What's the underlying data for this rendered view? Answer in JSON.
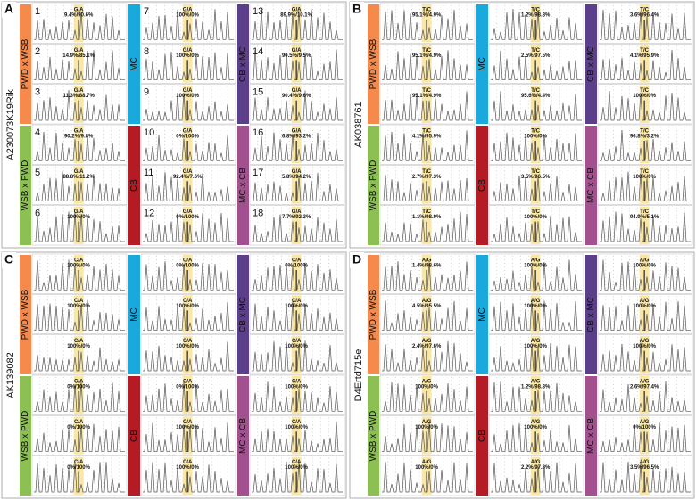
{
  "groups": [
    "PWD x WSB",
    "MC",
    "CB x MC",
    "WSB x PWD",
    "CB",
    "MC x CB"
  ],
  "panels": [
    {
      "letter": "A",
      "gene": "A230073K19Rik",
      "cells": [
        {
          "number": "1",
          "allele": "G/A",
          "ratio": "9.4%/90.6%"
        },
        {
          "number": "2",
          "allele": "G/A",
          "ratio": "14.9%/85.1%"
        },
        {
          "number": "3",
          "allele": "G/A",
          "ratio": "11.3%/88.7%"
        },
        {
          "number": "4",
          "allele": "G/A",
          "ratio": "90.2%/9.8%"
        },
        {
          "number": "5",
          "allele": "G/A",
          "ratio": "88.8%/11.2%"
        },
        {
          "number": "6",
          "allele": "G/A",
          "ratio": "100%/0%"
        },
        {
          "number": "7",
          "allele": "G/A",
          "ratio": "100%/0%"
        },
        {
          "number": "8",
          "allele": "G/A",
          "ratio": "100%/0%"
        },
        {
          "number": "9",
          "allele": "G/A",
          "ratio": "100%/0%"
        },
        {
          "number": "10",
          "allele": "G/A",
          "ratio": "0%/100%"
        },
        {
          "number": "11",
          "allele": "G/A",
          "ratio": "92.4%/7.6%"
        },
        {
          "number": "12",
          "allele": "G/A",
          "ratio": "0%/100%"
        },
        {
          "number": "13",
          "allele": "G/A",
          "ratio": "89.9%/10.1%"
        },
        {
          "number": "14",
          "allele": "G/A",
          "ratio": "90.5%/9.5%"
        },
        {
          "number": "15",
          "allele": "G/A",
          "ratio": "90.4%/9.6%"
        },
        {
          "number": "16",
          "allele": "G/A",
          "ratio": "6.8%/93.2%"
        },
        {
          "number": "17",
          "allele": "G/A",
          "ratio": "5.8%/94.2%"
        },
        {
          "number": "18",
          "allele": "G/A",
          "ratio": "7.7%/92.3%"
        }
      ]
    },
    {
      "letter": "B",
      "gene": "AK038761",
      "cells": [
        {
          "allele": "T/C",
          "ratio": "95.1%/4.9%"
        },
        {
          "allele": "T/C",
          "ratio": "95.1%/4.9%"
        },
        {
          "allele": "T/C",
          "ratio": "95.1%/4.9%"
        },
        {
          "allele": "T/C",
          "ratio": "4.1%/95.9%"
        },
        {
          "allele": "T/C",
          "ratio": "2.7%/97.3%"
        },
        {
          "allele": "T/C",
          "ratio": "1.1%/98.9%"
        },
        {
          "allele": "T/C",
          "ratio": "1.2%/98.8%"
        },
        {
          "allele": "T/C",
          "ratio": "2.5%/97.5%"
        },
        {
          "allele": "T/C",
          "ratio": "95.6%/4.4%"
        },
        {
          "allele": "T/C",
          "ratio": "100%/0%"
        },
        {
          "allele": "T/C",
          "ratio": "3.5%/96.5%"
        },
        {
          "allele": "T/C",
          "ratio": "100%/0%"
        },
        {
          "allele": "T/C",
          "ratio": "3.6%/96.4%"
        },
        {
          "allele": "T/C",
          "ratio": "4.1%/95.9%"
        },
        {
          "allele": "T/C",
          "ratio": "100%/0%"
        },
        {
          "allele": "T/C",
          "ratio": "96.8%/3.2%"
        },
        {
          "allele": "T/C",
          "ratio": "100%/0%"
        },
        {
          "allele": "T/C",
          "ratio": "94.9%/5.1%"
        }
      ]
    },
    {
      "letter": "C",
      "gene": "AK139082",
      "cells": [
        {
          "allele": "C/A",
          "ratio": "100%/0%"
        },
        {
          "allele": "C/A",
          "ratio": "100%/0%"
        },
        {
          "allele": "C/A",
          "ratio": "100%/0%"
        },
        {
          "allele": "C/A",
          "ratio": "0%/100%"
        },
        {
          "allele": "C/A",
          "ratio": "0%/100%"
        },
        {
          "allele": "C/A",
          "ratio": "0%/100%"
        },
        {
          "allele": "C/A",
          "ratio": "0%/100%"
        },
        {
          "allele": "C/A",
          "ratio": "100%/0%"
        },
        {
          "allele": "C/A",
          "ratio": "100%/0%"
        },
        {
          "allele": "C/A",
          "ratio": "0%/100%"
        },
        {
          "allele": "C/A",
          "ratio": "100%/0%"
        },
        {
          "allele": "C/A",
          "ratio": "100%/0%"
        },
        {
          "allele": "C/A",
          "ratio": "0%/100%"
        },
        {
          "allele": "C/A",
          "ratio": "100%/0%"
        },
        {
          "allele": "C/A",
          "ratio": "100%/0%"
        },
        {
          "allele": "C/A",
          "ratio": "100%/0%"
        },
        {
          "allele": "C/A",
          "ratio": "100%/0%"
        },
        {
          "allele": "C/A",
          "ratio": "100%/0%"
        }
      ]
    },
    {
      "letter": "D",
      "gene": "D4Ertd715e",
      "cells": [
        {
          "allele": "A/G",
          "ratio": "1.4%/98.6%"
        },
        {
          "allele": "A/G",
          "ratio": "4.5%/95.5%"
        },
        {
          "allele": "A/G",
          "ratio": "2.4%/97.6%"
        },
        {
          "allele": "A/G",
          "ratio": "100%/0%"
        },
        {
          "allele": "A/G",
          "ratio": "100%/0%"
        },
        {
          "allele": "A/G",
          "ratio": "100%/0%"
        },
        {
          "allele": "A/G",
          "ratio": "100%/0%"
        },
        {
          "allele": "A/G",
          "ratio": "100%/0%"
        },
        {
          "allele": "A/G",
          "ratio": "100%/0%"
        },
        {
          "allele": "A/G",
          "ratio": "1.2%/98.8%"
        },
        {
          "allele": "A/G",
          "ratio": "100%/0%"
        },
        {
          "allele": "A/G",
          "ratio": "2.2%/97.8%"
        },
        {
          "allele": "A/G",
          "ratio": "100%/0%"
        },
        {
          "allele": "A/G",
          "ratio": "100%/0%"
        },
        {
          "allele": "A/G",
          "ratio": "100%/0%"
        },
        {
          "allele": "A/G",
          "ratio": "2.6%/97.4%"
        },
        {
          "allele": "A/G",
          "ratio": "0%/100%"
        },
        {
          "allele": "A/G",
          "ratio": "3.5%/96.5%"
        }
      ]
    }
  ]
}
